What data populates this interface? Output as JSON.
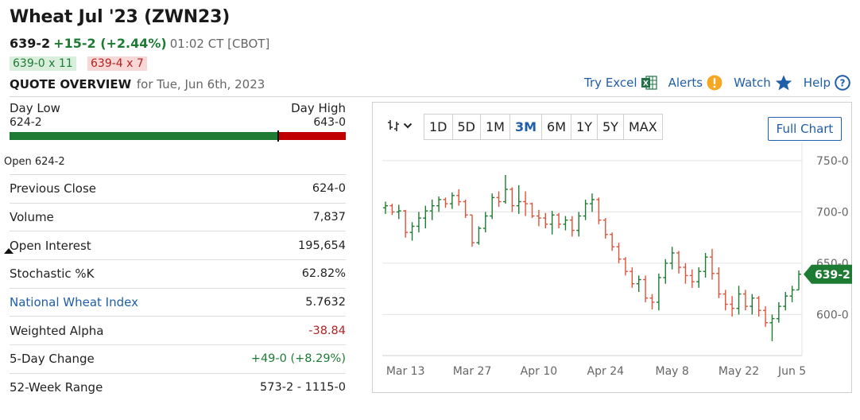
{
  "header": {
    "title": "Wheat Jul '23 (ZWN23)",
    "last": "639-2",
    "change": "+15-2 (+2.44%)",
    "time": "01:02 CT [CBOT]",
    "bid": "639-0 x 11",
    "ask": "639-4 x 7"
  },
  "quote_overview": {
    "label": "QUOTE OVERVIEW",
    "date": "for Tue, Jun 6th, 2023"
  },
  "actions": {
    "excel": "Try Excel",
    "alerts": "Alerts",
    "watch": "Watch",
    "help": "Help"
  },
  "range": {
    "low_label": "Day Low",
    "low_value": "624-2",
    "high_label": "Day High",
    "high_value": "643-0",
    "position_fraction": 0.8,
    "open_label": "Open 624-2"
  },
  "stats": [
    {
      "label": "Previous Close",
      "value": "624-0",
      "tone": ""
    },
    {
      "label": "Volume",
      "value": "7,837",
      "tone": ""
    },
    {
      "label": "Open Interest",
      "value": "195,654",
      "tone": ""
    },
    {
      "label": "Stochastic %K",
      "value": "62.82%",
      "tone": ""
    },
    {
      "label": "National Wheat Index",
      "value": "5.7632",
      "tone": "",
      "link": true
    },
    {
      "label": "Weighted Alpha",
      "value": "-38.84",
      "tone": "neg"
    },
    {
      "label": "5-Day Change",
      "value": "+49-0 (+8.29%)",
      "tone": "pos"
    },
    {
      "label": "52-Week Range",
      "value": "573-2 - 1115-0",
      "tone": ""
    }
  ],
  "chart_toolbar": {
    "timeframes": [
      "1D",
      "5D",
      "1M",
      "3M",
      "6M",
      "1Y",
      "5Y",
      "MAX"
    ],
    "active": "3M",
    "full_chart": "Full Chart"
  },
  "colors": {
    "up": "#1e7b34",
    "down": "#e0533a",
    "accent": "#1f5ea8",
    "range_low": "#1e7b34",
    "range_high": "#c00000"
  },
  "chart_data": {
    "type": "line",
    "style": "ohlc-bars",
    "ylim": [
      560,
      760
    ],
    "yticks": [
      {
        "v": 600,
        "label": "600-0"
      },
      {
        "v": 650,
        "label": "650-0"
      },
      {
        "v": 700,
        "label": "700-0"
      },
      {
        "v": 750,
        "label": "750-0"
      }
    ],
    "xticks": [
      {
        "i": 3,
        "label": "Mar 13"
      },
      {
        "i": 13,
        "label": "Mar 27"
      },
      {
        "i": 23,
        "label": "Apr 10"
      },
      {
        "i": 33,
        "label": "Apr 24"
      },
      {
        "i": 43,
        "label": "May 8"
      },
      {
        "i": 53,
        "label": "May 22"
      },
      {
        "i": 61,
        "label": "Jun 5"
      }
    ],
    "last_label": "639-2",
    "last_value": 639.25,
    "bars": [
      {
        "o": 704,
        "h": 710,
        "l": 698,
        "c": 706
      },
      {
        "o": 706,
        "h": 708,
        "l": 697,
        "c": 700
      },
      {
        "o": 700,
        "h": 707,
        "l": 693,
        "c": 701
      },
      {
        "o": 701,
        "h": 702,
        "l": 675,
        "c": 680
      },
      {
        "o": 680,
        "h": 690,
        "l": 672,
        "c": 686
      },
      {
        "o": 686,
        "h": 700,
        "l": 680,
        "c": 694
      },
      {
        "o": 694,
        "h": 706,
        "l": 684,
        "c": 701
      },
      {
        "o": 701,
        "h": 712,
        "l": 692,
        "c": 706
      },
      {
        "o": 706,
        "h": 715,
        "l": 700,
        "c": 712
      },
      {
        "o": 712,
        "h": 714,
        "l": 704,
        "c": 708
      },
      {
        "o": 708,
        "h": 719,
        "l": 703,
        "c": 716
      },
      {
        "o": 716,
        "h": 722,
        "l": 706,
        "c": 710
      },
      {
        "o": 710,
        "h": 712,
        "l": 694,
        "c": 697
      },
      {
        "o": 697,
        "h": 697,
        "l": 666,
        "c": 670
      },
      {
        "o": 670,
        "h": 686,
        "l": 668,
        "c": 684
      },
      {
        "o": 684,
        "h": 700,
        "l": 680,
        "c": 696
      },
      {
        "o": 696,
        "h": 718,
        "l": 693,
        "c": 714
      },
      {
        "o": 714,
        "h": 720,
        "l": 705,
        "c": 710
      },
      {
        "o": 710,
        "h": 736,
        "l": 708,
        "c": 722
      },
      {
        "o": 722,
        "h": 724,
        "l": 700,
        "c": 706
      },
      {
        "o": 706,
        "h": 726,
        "l": 698,
        "c": 710
      },
      {
        "o": 710,
        "h": 720,
        "l": 696,
        "c": 708
      },
      {
        "o": 708,
        "h": 709,
        "l": 694,
        "c": 696
      },
      {
        "o": 696,
        "h": 702,
        "l": 686,
        "c": 694
      },
      {
        "o": 694,
        "h": 699,
        "l": 684,
        "c": 688
      },
      {
        "o": 688,
        "h": 701,
        "l": 678,
        "c": 697
      },
      {
        "o": 697,
        "h": 699,
        "l": 684,
        "c": 688
      },
      {
        "o": 688,
        "h": 696,
        "l": 682,
        "c": 692
      },
      {
        "o": 692,
        "h": 696,
        "l": 676,
        "c": 682
      },
      {
        "o": 682,
        "h": 700,
        "l": 676,
        "c": 696
      },
      {
        "o": 696,
        "h": 712,
        "l": 692,
        "c": 708
      },
      {
        "o": 708,
        "h": 718,
        "l": 700,
        "c": 712
      },
      {
        "o": 712,
        "h": 714,
        "l": 688,
        "c": 692
      },
      {
        "o": 692,
        "h": 694,
        "l": 674,
        "c": 678
      },
      {
        "o": 678,
        "h": 680,
        "l": 662,
        "c": 666
      },
      {
        "o": 666,
        "h": 670,
        "l": 650,
        "c": 654
      },
      {
        "o": 654,
        "h": 656,
        "l": 638,
        "c": 642
      },
      {
        "o": 642,
        "h": 646,
        "l": 626,
        "c": 630
      },
      {
        "o": 630,
        "h": 638,
        "l": 622,
        "c": 634
      },
      {
        "o": 634,
        "h": 638,
        "l": 612,
        "c": 616
      },
      {
        "o": 616,
        "h": 620,
        "l": 605,
        "c": 612
      },
      {
        "o": 612,
        "h": 640,
        "l": 604,
        "c": 636
      },
      {
        "o": 636,
        "h": 654,
        "l": 630,
        "c": 650
      },
      {
        "o": 650,
        "h": 666,
        "l": 644,
        "c": 660
      },
      {
        "o": 660,
        "h": 662,
        "l": 640,
        "c": 646
      },
      {
        "o": 646,
        "h": 650,
        "l": 630,
        "c": 638
      },
      {
        "o": 638,
        "h": 644,
        "l": 626,
        "c": 632
      },
      {
        "o": 632,
        "h": 646,
        "l": 626,
        "c": 642
      },
      {
        "o": 642,
        "h": 660,
        "l": 636,
        "c": 656
      },
      {
        "o": 656,
        "h": 664,
        "l": 634,
        "c": 640
      },
      {
        "o": 640,
        "h": 646,
        "l": 616,
        "c": 620
      },
      {
        "o": 620,
        "h": 624,
        "l": 604,
        "c": 610
      },
      {
        "o": 610,
        "h": 618,
        "l": 598,
        "c": 606
      },
      {
        "o": 606,
        "h": 628,
        "l": 600,
        "c": 620
      },
      {
        "o": 620,
        "h": 624,
        "l": 604,
        "c": 608
      },
      {
        "o": 608,
        "h": 620,
        "l": 600,
        "c": 616
      },
      {
        "o": 616,
        "h": 618,
        "l": 598,
        "c": 604
      },
      {
        "o": 604,
        "h": 608,
        "l": 588,
        "c": 592
      },
      {
        "o": 592,
        "h": 600,
        "l": 574,
        "c": 596
      },
      {
        "o": 596,
        "h": 612,
        "l": 592,
        "c": 608
      },
      {
        "o": 608,
        "h": 622,
        "l": 604,
        "c": 618
      },
      {
        "o": 618,
        "h": 628,
        "l": 612,
        "c": 624
      },
      {
        "o": 624,
        "h": 643,
        "l": 624,
        "c": 639.25
      }
    ]
  }
}
